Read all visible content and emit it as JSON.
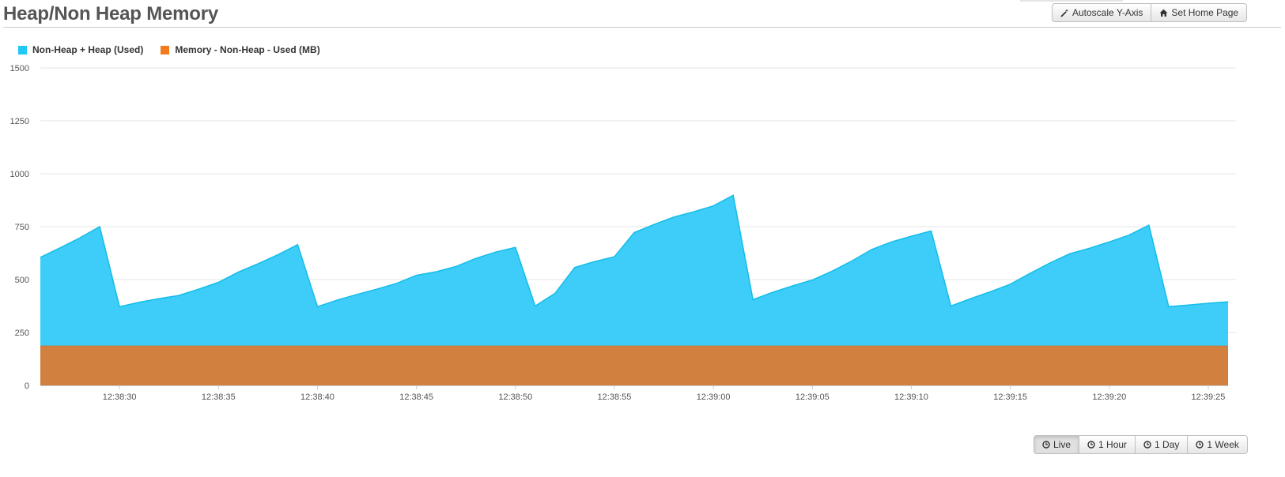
{
  "title": "Heap/Non Heap Memory",
  "toolbar": {
    "autoscale_label": "Autoscale Y-Axis",
    "home_label": "Set Home Page"
  },
  "range_buttons": {
    "live": "Live",
    "hour": "1 Hour",
    "day": "1 Day",
    "week": "1 Week",
    "active": "Live"
  },
  "legend": [
    {
      "label": "Non-Heap + Heap (Used)",
      "color": "#1ec8f7"
    },
    {
      "label": "Memory - Non-Heap - Used (MB)",
      "color": "#f47a20"
    }
  ],
  "chart_data": {
    "type": "area",
    "ylim": [
      0,
      1500
    ],
    "yticks": [
      "0",
      "250",
      "500",
      "750",
      "1000",
      "1250",
      "1500"
    ],
    "xlim": [
      "12:38:26",
      "12:39:26"
    ],
    "xticks": [
      "12:38:30",
      "12:38:35",
      "12:38:40",
      "12:38:45",
      "12:38:50",
      "12:38:55",
      "12:39:00",
      "12:39:05",
      "12:39:10",
      "12:39:15",
      "12:39:20",
      "12:39:25"
    ],
    "grid": true,
    "legend_position": "top-left",
    "series": [
      {
        "name": "Non-Heap + Heap (Used)",
        "color": "#3dcdf8",
        "points": [
          [
            "12:38:26",
            605
          ],
          [
            "12:38:27",
            650
          ],
          [
            "12:38:28",
            697
          ],
          [
            "12:38:29",
            750
          ],
          [
            "12:38:30",
            372
          ],
          [
            "12:38:31",
            393
          ],
          [
            "12:38:32",
            410
          ],
          [
            "12:38:33",
            425
          ],
          [
            "12:38:34",
            455
          ],
          [
            "12:38:35",
            487
          ],
          [
            "12:38:36",
            535
          ],
          [
            "12:38:37",
            575
          ],
          [
            "12:38:38",
            617
          ],
          [
            "12:38:39",
            665
          ],
          [
            "12:38:40",
            372
          ],
          [
            "12:38:41",
            403
          ],
          [
            "12:38:42",
            430
          ],
          [
            "12:38:43",
            455
          ],
          [
            "12:38:44",
            482
          ],
          [
            "12:38:45",
            520
          ],
          [
            "12:38:46",
            537
          ],
          [
            "12:38:47",
            562
          ],
          [
            "12:38:48",
            600
          ],
          [
            "12:38:49",
            630
          ],
          [
            "12:38:50",
            652
          ],
          [
            "12:38:51",
            375
          ],
          [
            "12:38:52",
            435
          ],
          [
            "12:38:53",
            557
          ],
          [
            "12:38:54",
            585
          ],
          [
            "12:38:55",
            608
          ],
          [
            "12:38:56",
            722
          ],
          [
            "12:38:57",
            760
          ],
          [
            "12:38:58",
            795
          ],
          [
            "12:38:59",
            820
          ],
          [
            "12:39:00",
            848
          ],
          [
            "12:39:01",
            898
          ],
          [
            "12:39:02",
            405
          ],
          [
            "12:39:03",
            440
          ],
          [
            "12:39:04",
            470
          ],
          [
            "12:39:05",
            498
          ],
          [
            "12:39:06",
            540
          ],
          [
            "12:39:07",
            588
          ],
          [
            "12:39:08",
            642
          ],
          [
            "12:39:09",
            678
          ],
          [
            "12:39:10",
            705
          ],
          [
            "12:39:11",
            730
          ],
          [
            "12:39:12",
            375
          ],
          [
            "12:39:13",
            410
          ],
          [
            "12:39:14",
            443
          ],
          [
            "12:39:15",
            478
          ],
          [
            "12:39:16",
            530
          ],
          [
            "12:39:17",
            578
          ],
          [
            "12:39:18",
            622
          ],
          [
            "12:39:19",
            648
          ],
          [
            "12:39:20",
            678
          ],
          [
            "12:39:21",
            710
          ],
          [
            "12:39:22",
            757
          ],
          [
            "12:39:23",
            372
          ],
          [
            "12:39:24",
            380
          ],
          [
            "12:39:25",
            388
          ],
          [
            "12:39:26",
            395
          ]
        ]
      },
      {
        "name": "Memory - Non-Heap - Used (MB)",
        "color": "#d18040",
        "points": [
          [
            "12:38:26",
            185
          ],
          [
            "12:39:26",
            185
          ]
        ]
      }
    ]
  }
}
